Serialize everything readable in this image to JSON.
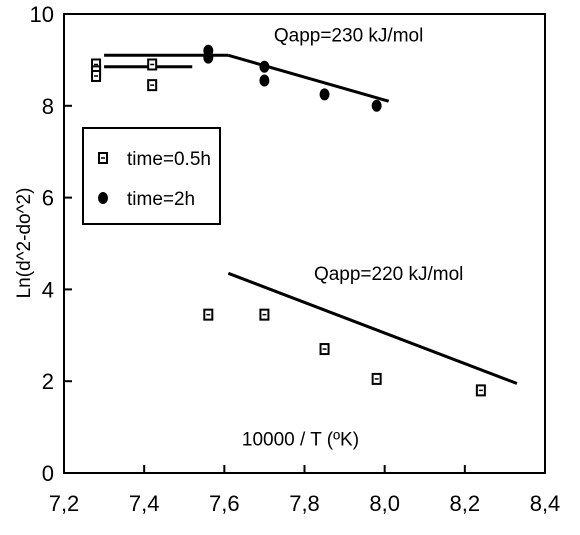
{
  "chart_data": {
    "type": "scatter",
    "xlabel": "10000 / T (ºK)",
    "ylabel": "Ln(d^2-do^2)",
    "xlim": [
      7.2,
      8.4
    ],
    "ylim": [
      0,
      10
    ],
    "x_ticks": [
      "7,2",
      "7,4",
      "7,6",
      "7,8",
      "8,0",
      "8,2",
      "8,4"
    ],
    "y_ticks": [
      "0",
      "2",
      "4",
      "6",
      "8",
      "10"
    ],
    "grid": false,
    "legend_position": "upper-left",
    "series": [
      {
        "name": "time=0.5h",
        "marker": "square",
        "points": [
          {
            "x": 7.28,
            "y": 8.9
          },
          {
            "x": 7.28,
            "y": 8.75
          },
          {
            "x": 7.28,
            "y": 8.65
          },
          {
            "x": 7.42,
            "y": 8.9
          },
          {
            "x": 7.42,
            "y": 8.45
          },
          {
            "x": 7.56,
            "y": 3.45
          },
          {
            "x": 7.7,
            "y": 3.45
          },
          {
            "x": 7.85,
            "y": 2.7
          },
          {
            "x": 7.98,
            "y": 2.05
          },
          {
            "x": 8.24,
            "y": 1.8
          }
        ]
      },
      {
        "name": "time=2h",
        "marker": "circle",
        "points": [
          {
            "x": 7.56,
            "y": 9.2
          },
          {
            "x": 7.56,
            "y": 9.05
          },
          {
            "x": 7.7,
            "y": 8.85
          },
          {
            "x": 7.7,
            "y": 8.55
          },
          {
            "x": 7.85,
            "y": 8.25
          },
          {
            "x": 7.98,
            "y": 8.0
          }
        ]
      }
    ],
    "fit_lines": [
      {
        "x1": 7.3,
        "y1": 8.85,
        "x2": 7.52,
        "y2": 8.85
      },
      {
        "x1": 7.3,
        "y1": 9.1,
        "x2": 7.61,
        "y2": 9.1
      },
      {
        "x1": 7.61,
        "y1": 9.1,
        "x2": 8.01,
        "y2": 8.1
      },
      {
        "x1": 7.61,
        "y1": 4.35,
        "x2": 8.33,
        "y2": 1.95
      }
    ],
    "annotations": [
      {
        "text": "Qapp=230 kJ/mol",
        "x": 7.91,
        "y": 9.4
      },
      {
        "text": "Qapp=220 kJ/mol",
        "x": 8.01,
        "y": 4.2
      },
      {
        "text": "10000 / T (ºK)",
        "x": 7.79,
        "y": 0.6
      }
    ]
  }
}
